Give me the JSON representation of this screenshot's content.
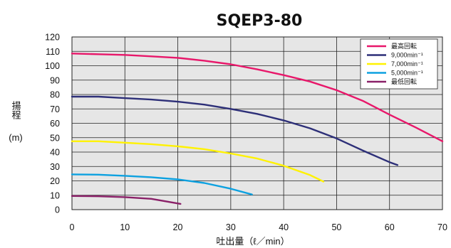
{
  "chart_data": {
    "type": "line",
    "title": "SQEP3-80",
    "xlabel": "吐出量（ℓ／min）",
    "ylabel": {
      "text": "揚程",
      "unit": "(m)"
    },
    "xlim": [
      0,
      70
    ],
    "ylim": [
      0,
      120
    ],
    "xticks": [
      0,
      10,
      20,
      30,
      40,
      50,
      60,
      70
    ],
    "yticks": [
      0,
      10,
      20,
      30,
      40,
      50,
      60,
      70,
      80,
      90,
      100,
      110,
      120
    ],
    "grid": true,
    "legend_position": "top-right",
    "series": [
      {
        "name": "最高回転",
        "color": "#e8176a",
        "points": [
          [
            0,
            108.5
          ],
          [
            5,
            108
          ],
          [
            10,
            107.5
          ],
          [
            15,
            106.5
          ],
          [
            20,
            105.5
          ],
          [
            25,
            103.5
          ],
          [
            30,
            101
          ],
          [
            35,
            97.5
          ],
          [
            40,
            93.5
          ],
          [
            45,
            89
          ],
          [
            50,
            83
          ],
          [
            55,
            75.5
          ],
          [
            60,
            66
          ],
          [
            65,
            57
          ],
          [
            70,
            47.5
          ]
        ]
      },
      {
        "name": "9,000min⁻¹",
        "color": "#2d2f78",
        "points": [
          [
            0,
            78.5
          ],
          [
            5,
            78.5
          ],
          [
            10,
            77.5
          ],
          [
            15,
            76.5
          ],
          [
            20,
            75
          ],
          [
            25,
            73
          ],
          [
            30,
            70
          ],
          [
            35,
            66.5
          ],
          [
            40,
            62
          ],
          [
            45,
            56.5
          ],
          [
            50,
            49.5
          ],
          [
            55,
            41
          ],
          [
            60,
            33
          ],
          [
            61.5,
            31
          ]
        ]
      },
      {
        "name": "7,000min⁻¹",
        "color": "#fff200",
        "points": [
          [
            0,
            47.5
          ],
          [
            5,
            47.5
          ],
          [
            10,
            46.5
          ],
          [
            15,
            45.5
          ],
          [
            20,
            44
          ],
          [
            25,
            42
          ],
          [
            30,
            39
          ],
          [
            35,
            35.5
          ],
          [
            40,
            30.5
          ],
          [
            45,
            24
          ],
          [
            47.5,
            19.5
          ]
        ]
      },
      {
        "name": "5,000min⁻¹",
        "color": "#0da1e0",
        "points": [
          [
            0,
            24.5
          ],
          [
            5,
            24.3
          ],
          [
            10,
            23.5
          ],
          [
            15,
            22.5
          ],
          [
            20,
            21
          ],
          [
            25,
            18.5
          ],
          [
            30,
            14.5
          ],
          [
            34,
            10.5
          ]
        ]
      },
      {
        "name": "最低回転",
        "color": "#8a2068",
        "points": [
          [
            0,
            9.5
          ],
          [
            5,
            9.3
          ],
          [
            10,
            8.7
          ],
          [
            15,
            7.5
          ],
          [
            20.5,
            4
          ]
        ]
      }
    ]
  }
}
